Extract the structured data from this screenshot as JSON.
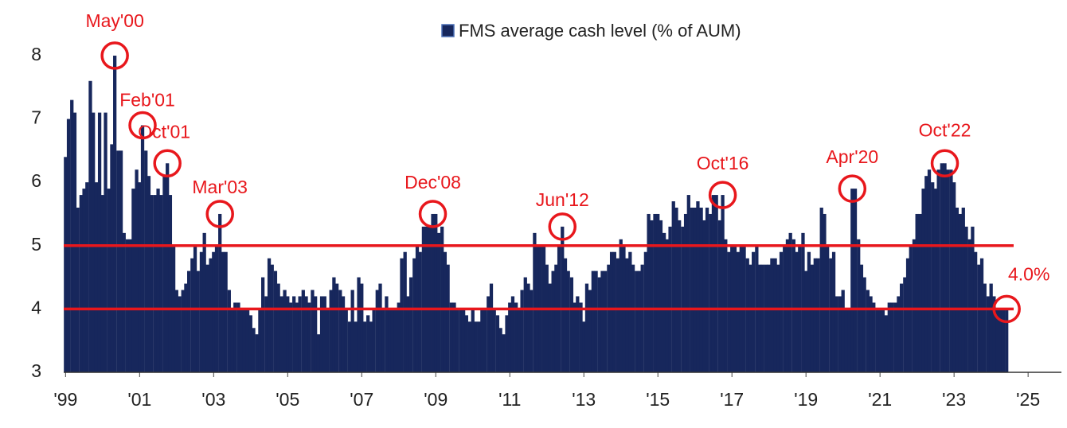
{
  "chart_data": {
    "type": "bar",
    "series": [
      {
        "name": "FMS average cash level (% of AUM)",
        "color": "#17275c",
        "x": [
          1999,
          1999.08,
          1999.17,
          1999.25,
          1999.33,
          1999.42,
          1999.5,
          1999.58,
          1999.67,
          1999.75,
          1999.83,
          1999.92,
          2000,
          2000.08,
          2000.17,
          2000.25,
          2000.33,
          2000.42,
          2000.5,
          2000.58,
          2000.67,
          2000.75,
          2000.83,
          2000.92,
          2001,
          2001.08,
          2001.17,
          2001.25,
          2001.33,
          2001.42,
          2001.5,
          2001.58,
          2001.67,
          2001.75,
          2001.83,
          2001.92,
          2002,
          2002.08,
          2002.17,
          2002.25,
          2002.33,
          2002.42,
          2002.5,
          2002.58,
          2002.67,
          2002.75,
          2002.83,
          2002.92,
          2003,
          2003.08,
          2003.17,
          2003.25,
          2003.33,
          2003.42,
          2003.5,
          2003.58,
          2003.67,
          2003.75,
          2003.83,
          2003.92,
          2004,
          2004.08,
          2004.17,
          2004.25,
          2004.33,
          2004.42,
          2004.5,
          2004.58,
          2004.67,
          2004.75,
          2004.83,
          2004.92,
          2005,
          2005.08,
          2005.17,
          2005.25,
          2005.33,
          2005.42,
          2005.5,
          2005.58,
          2005.67,
          2005.75,
          2005.83,
          2005.92,
          2006,
          2006.08,
          2006.17,
          2006.25,
          2006.33,
          2006.42,
          2006.5,
          2006.58,
          2006.67,
          2006.75,
          2006.83,
          2006.92,
          2007,
          2007.08,
          2007.17,
          2007.25,
          2007.33,
          2007.42,
          2007.5,
          2007.58,
          2007.67,
          2007.75,
          2007.83,
          2007.92,
          2008,
          2008.08,
          2008.17,
          2008.25,
          2008.33,
          2008.42,
          2008.5,
          2008.58,
          2008.67,
          2008.75,
          2008.83,
          2008.92,
          2009,
          2009.08,
          2009.17,
          2009.25,
          2009.33,
          2009.42,
          2009.5,
          2009.58,
          2009.67,
          2009.75,
          2009.83,
          2009.92,
          2010,
          2010.08,
          2010.17,
          2010.25,
          2010.33,
          2010.42,
          2010.5,
          2010.58,
          2010.67,
          2010.75,
          2010.83,
          2010.92,
          2011,
          2011.08,
          2011.17,
          2011.25,
          2011.33,
          2011.42,
          2011.5,
          2011.58,
          2011.67,
          2011.75,
          2011.83,
          2011.92,
          2012,
          2012.08,
          2012.17,
          2012.25,
          2012.33,
          2012.42,
          2012.5,
          2012.58,
          2012.67,
          2012.75,
          2012.83,
          2012.92,
          2013,
          2013.08,
          2013.17,
          2013.25,
          2013.33,
          2013.42,
          2013.5,
          2013.58,
          2013.67,
          2013.75,
          2013.83,
          2013.92,
          2014,
          2014.08,
          2014.17,
          2014.25,
          2014.33,
          2014.42,
          2014.5,
          2014.58,
          2014.67,
          2014.75,
          2014.83,
          2014.92,
          2015,
          2015.08,
          2015.17,
          2015.25,
          2015.33,
          2015.42,
          2015.5,
          2015.58,
          2015.67,
          2015.75,
          2015.83,
          2015.92,
          2016,
          2016.08,
          2016.17,
          2016.25,
          2016.33,
          2016.42,
          2016.5,
          2016.58,
          2016.67,
          2016.75,
          2016.83,
          2016.92,
          2017,
          2017.08,
          2017.17,
          2017.25,
          2017.33,
          2017.42,
          2017.5,
          2017.58,
          2017.67,
          2017.75,
          2017.83,
          2017.92,
          2018,
          2018.08,
          2018.17,
          2018.25,
          2018.33,
          2018.42,
          2018.5,
          2018.58,
          2018.67,
          2018.75,
          2018.83,
          2018.92,
          2019,
          2019.08,
          2019.17,
          2019.25,
          2019.33,
          2019.42,
          2019.5,
          2019.58,
          2019.67,
          2019.75,
          2019.83,
          2019.92,
          2020,
          2020.08,
          2020.17,
          2020.25,
          2020.33,
          2020.42,
          2020.5,
          2020.58,
          2020.67,
          2020.75,
          2020.83,
          2020.92,
          2021,
          2021.08,
          2021.17,
          2021.25,
          2021.33,
          2021.42,
          2021.5,
          2021.58,
          2021.67,
          2021.75,
          2021.83,
          2021.92,
          2022,
          2022.08,
          2022.17,
          2022.25,
          2022.33,
          2022.42,
          2022.5,
          2022.58,
          2022.67,
          2022.75,
          2022.83,
          2022.92,
          2023,
          2023.08,
          2023.17,
          2023.25,
          2023.33,
          2023.42,
          2023.5,
          2023.58,
          2023.67,
          2023.75,
          2023.83,
          2023.92,
          2024,
          2024.08,
          2024.17,
          2024.25,
          2024.33,
          2024.42
        ],
        "values": [
          6.4,
          7.0,
          7.3,
          7.1,
          5.6,
          5.8,
          5.9,
          6.0,
          7.6,
          7.1,
          6.0,
          7.1,
          5.8,
          7.1,
          5.9,
          6.6,
          8.0,
          6.5,
          6.5,
          5.2,
          5.1,
          5.1,
          5.9,
          6.2,
          6.0,
          6.9,
          6.5,
          6.1,
          5.8,
          5.8,
          5.9,
          5.8,
          6.1,
          6.3,
          5.8,
          5.0,
          4.3,
          4.2,
          4.3,
          4.4,
          4.6,
          4.8,
          5.0,
          4.6,
          4.9,
          5.2,
          4.7,
          4.8,
          4.9,
          5.0,
          5.5,
          4.9,
          4.9,
          4.3,
          4.0,
          4.1,
          4.1,
          4.0,
          4.0,
          4.0,
          3.9,
          3.7,
          3.6,
          4.0,
          4.5,
          4.2,
          4.8,
          4.7,
          4.6,
          4.4,
          4.2,
          4.3,
          4.2,
          4.1,
          4.2,
          4.1,
          4.2,
          4.3,
          4.2,
          4.1,
          4.3,
          4.2,
          3.6,
          4.2,
          4.2,
          4.0,
          4.3,
          4.5,
          4.4,
          4.3,
          4.2,
          4.0,
          3.8,
          4.3,
          3.8,
          4.5,
          4.4,
          3.8,
          3.9,
          3.8,
          4.0,
          4.3,
          4.4,
          4.0,
          4.2,
          4.0,
          4.0,
          4.0,
          4.1,
          4.8,
          4.9,
          4.2,
          4.5,
          4.8,
          5.0,
          4.9,
          5.3,
          5.3,
          5.3,
          5.5,
          5.5,
          5.2,
          5.3,
          4.9,
          4.7,
          4.1,
          4.1,
          4.0,
          4.0,
          4.0,
          3.9,
          3.8,
          4.0,
          3.8,
          3.8,
          4.0,
          4.0,
          4.2,
          4.4,
          4.0,
          3.9,
          3.7,
          3.6,
          3.9,
          4.1,
          4.2,
          4.1,
          4.0,
          4.3,
          4.5,
          4.4,
          4.3,
          5.2,
          5.0,
          5.0,
          5.0,
          4.7,
          4.4,
          4.6,
          4.7,
          5.0,
          5.3,
          4.8,
          4.6,
          4.5,
          4.1,
          4.2,
          4.1,
          3.8,
          4.4,
          4.3,
          4.6,
          4.6,
          4.5,
          4.6,
          4.6,
          4.7,
          4.9,
          4.9,
          4.8,
          5.1,
          5.0,
          4.8,
          4.9,
          4.7,
          4.6,
          4.6,
          4.7,
          4.9,
          5.5,
          5.4,
          5.5,
          5.5,
          5.4,
          5.2,
          5.1,
          5.3,
          5.7,
          5.6,
          5.4,
          5.3,
          5.5,
          5.8,
          5.6,
          5.6,
          5.7,
          5.6,
          5.4,
          5.6,
          5.5,
          5.8,
          5.8,
          5.4,
          5.8,
          5.1,
          4.9,
          5.0,
          5.0,
          4.9,
          5.0,
          5.0,
          4.8,
          4.7,
          4.9,
          5.0,
          4.7,
          4.7,
          4.7,
          4.7,
          4.8,
          4.8,
          4.7,
          4.9,
          5.0,
          5.1,
          5.2,
          5.1,
          4.9,
          5.0,
          5.2,
          4.6,
          4.9,
          4.7,
          4.8,
          4.8,
          5.6,
          5.5,
          5.0,
          4.8,
          4.9,
          4.2,
          4.2,
          4.3,
          4.0,
          4.0,
          5.9,
          5.9,
          5.1,
          4.7,
          4.5,
          4.3,
          4.2,
          4.1,
          4.0,
          4.0,
          4.0,
          3.9,
          4.1,
          4.1,
          4.1,
          4.2,
          4.4,
          4.5,
          4.8,
          5.0,
          5.1,
          5.5,
          5.5,
          5.9,
          6.1,
          6.2,
          6.0,
          5.9,
          6.2,
          6.3,
          6.3,
          6.2,
          6.2,
          6.0,
          5.6,
          5.5,
          5.6,
          5.3,
          5.1,
          5.3,
          4.9,
          4.7,
          4.8,
          4.4,
          4.2,
          4.4,
          4.2,
          4.0,
          4.0,
          4.0,
          4.0
        ]
      }
    ],
    "xlim": [
      1998.95,
      2025.9
    ],
    "xticks": [
      {
        "value": 1999,
        "label": "'99"
      },
      {
        "value": 2001,
        "label": "'01"
      },
      {
        "value": 2003,
        "label": "'03"
      },
      {
        "value": 2005,
        "label": "'05"
      },
      {
        "value": 2007,
        "label": "'07"
      },
      {
        "value": 2009,
        "label": "'09"
      },
      {
        "value": 2011,
        "label": "'11"
      },
      {
        "value": 2013,
        "label": "'13"
      },
      {
        "value": 2015,
        "label": "'15"
      },
      {
        "value": 2017,
        "label": "'17"
      },
      {
        "value": 2019,
        "label": "'19"
      },
      {
        "value": 2021,
        "label": "'21"
      },
      {
        "value": 2023,
        "label": "'23"
      },
      {
        "value": 2025,
        "label": "'25"
      }
    ],
    "ylim": [
      3,
      8.2
    ],
    "yticks": [
      3,
      4,
      5,
      6,
      7,
      8
    ],
    "reference_lines": {
      "values": [
        5,
        4
      ],
      "color": "#e8171c"
    },
    "annotations": [
      {
        "label": "May'00",
        "x": 2000.33,
        "y": 8.0
      },
      {
        "label": "Feb'01",
        "x": 2001.08,
        "y": 6.9
      },
      {
        "label": "Oct'01",
        "x": 2001.75,
        "y": 6.3
      },
      {
        "label": "Mar'03",
        "x": 2003.17,
        "y": 5.5
      },
      {
        "label": "Dec'08",
        "x": 2008.92,
        "y": 5.5
      },
      {
        "label": "Jun'12",
        "x": 2012.42,
        "y": 5.3
      },
      {
        "label": "Oct'16",
        "x": 2016.75,
        "y": 5.8
      },
      {
        "label": "Apr'20",
        "x": 2020.25,
        "y": 5.9
      },
      {
        "label": "Oct'22",
        "x": 2022.75,
        "y": 6.3
      },
      {
        "label": "4.0%",
        "x": 2024.42,
        "y": 4.0
      }
    ],
    "annotation_color": "#e8171c",
    "legend": "top"
  }
}
